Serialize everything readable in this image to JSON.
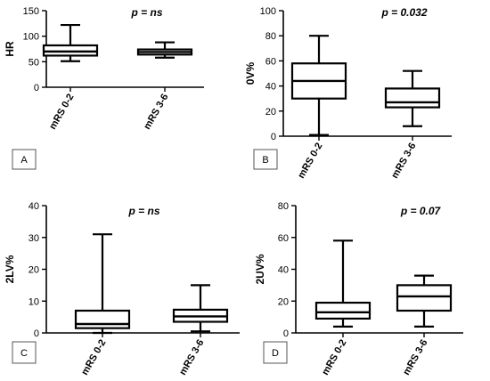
{
  "chart_data": [
    {
      "type": "box",
      "panel_label": "A",
      "ylabel": "HR",
      "annotation": "p = ns",
      "categories": [
        "mRS 0-2",
        "mRS 3-6"
      ],
      "ylim": [
        0,
        150
      ],
      "yticks": [
        0,
        50,
        100,
        150
      ],
      "boxes": [
        {
          "min": 51,
          "q1": 62,
          "median": 70,
          "q3": 82,
          "max": 122
        },
        {
          "min": 58,
          "q1": 64,
          "median": 69,
          "q3": 74,
          "max": 88
        }
      ]
    },
    {
      "type": "box",
      "panel_label": "B",
      "ylabel": "0V%",
      "annotation": "p = 0.032",
      "categories": [
        "mRS 0-2",
        "mRS 3-6"
      ],
      "ylim": [
        0,
        100
      ],
      "yticks": [
        0,
        20,
        40,
        60,
        80,
        100
      ],
      "boxes": [
        {
          "min": 1,
          "q1": 30,
          "median": 44,
          "q3": 58,
          "max": 80
        },
        {
          "min": 8,
          "q1": 23,
          "median": 27,
          "q3": 38,
          "max": 52
        }
      ]
    },
    {
      "type": "box",
      "panel_label": "C",
      "ylabel": "2LV%",
      "annotation": "p = ns",
      "categories": [
        "mRS 0-2",
        "mRS 3-6"
      ],
      "ylim": [
        0,
        40
      ],
      "yticks": [
        0,
        10,
        20,
        30,
        40
      ],
      "boxes": [
        {
          "min": 0,
          "q1": 1.5,
          "median": 2.8,
          "q3": 7,
          "max": 31
        },
        {
          "min": 0.5,
          "q1": 3.5,
          "median": 5.2,
          "q3": 7.3,
          "max": 15
        }
      ]
    },
    {
      "type": "box",
      "panel_label": "D",
      "ylabel": "2UV%",
      "annotation": "p = 0.07",
      "categories": [
        "mRS 0-2",
        "mRS 3-6"
      ],
      "ylim": [
        0,
        80
      ],
      "yticks": [
        0,
        20,
        40,
        60,
        80
      ],
      "boxes": [
        {
          "min": 4,
          "q1": 9,
          "median": 13,
          "q3": 19,
          "max": 58
        },
        {
          "min": 4,
          "q1": 14,
          "median": 23,
          "q3": 30,
          "max": 36
        }
      ]
    }
  ],
  "style": {
    "line_color": "#000000",
    "box_fill": "#ffffff",
    "background": "#ffffff"
  }
}
